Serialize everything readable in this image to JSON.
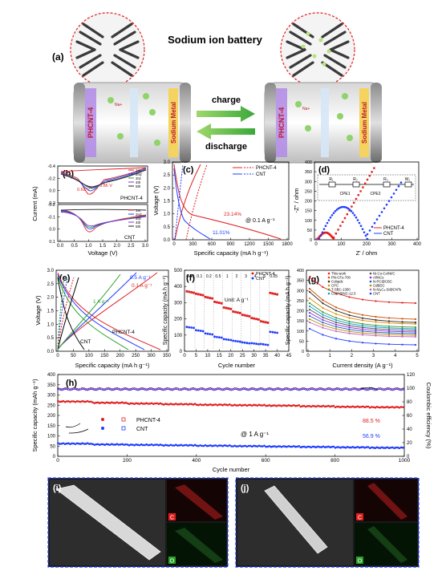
{
  "panels": {
    "a": {
      "label": "(a)",
      "title": "Sodium ion battery",
      "charge_label": "charge",
      "discharge_label": "discharge",
      "left_cell": "PHCNT-4",
      "metal_label": "Sodium Metal",
      "ion_label": "Na+"
    },
    "b": {
      "label": "(b)",
      "ylabel": "Current (mA)",
      "xlabel": "Voltage (V)",
      "top_name": "PHCNT-4",
      "bottom_name": "CNT",
      "peak1": "0.62 V",
      "peak2": "0.86 V",
      "legend": [
        "1st",
        "2nd",
        "3rd",
        "4th",
        "5th"
      ]
    },
    "c": {
      "label": "(c)",
      "ylabel": "Voltage (V)",
      "xlabel": "Specific capacity (mA h g⁻¹)",
      "legend": [
        "PHCNT-4",
        "CNT"
      ],
      "annot_rate": "@ 0.1 A g⁻¹",
      "pct1": "23.14%",
      "pct2": "11.01%"
    },
    "d": {
      "label": "(d)",
      "ylabel": "-Z'' / ohm",
      "xlabel": "Z' / ohm",
      "legend": [
        "PHCNT-4",
        "CNT"
      ],
      "circuit": [
        "R₁",
        "R₂",
        "R₃",
        "CPE1",
        "CPE2",
        "W₁"
      ]
    },
    "e": {
      "label": "(e)",
      "ylabel": "Voltage (V)",
      "xlabel": "Specific capacity (mA h g⁻¹)",
      "rates": [
        "0.5 A g⁻¹",
        "0.1 A g⁻¹",
        "1 A g⁻¹"
      ],
      "name1": "PHCNT-4",
      "name2": "CNT"
    },
    "f": {
      "label": "(f)",
      "ylabel": "Specific capacity (mA h g⁻¹)",
      "xlabel": "Cycle number",
      "legend": [
        "PHCNT-4",
        "CNT"
      ],
      "unit": "Unit: A g⁻¹",
      "rates": [
        "0.05",
        "0.1",
        "0.2",
        "0.5",
        "1",
        "2",
        "3",
        "4",
        "5",
        "0.05"
      ]
    },
    "g": {
      "label": "(g)",
      "ylabel": "Specific capacity (mA h g⁻¹)",
      "xlabel": "Current density (A g⁻¹)",
      "legend": [
        "This work",
        "PN-CFs-700",
        "Cobpdc",
        "CPC",
        "T-SBC-1300",
        "Co₃P@NC-12.5",
        "Ni-Co-Co/Ni/C",
        "Al/NCs",
        "N-PC@CBC",
        "CdBDC",
        "N-Ni₃C₄-Si@CNTs",
        "CNT"
      ],
      "colors": [
        "#e02020",
        "#d24f00",
        "#2e2e2e",
        "#e08a00",
        "#3c8f3c",
        "#00a0c8",
        "#555555",
        "#8a2be2",
        "#1b5fb5",
        "#b8860b",
        "#c060c0",
        "#1e3cff"
      ]
    },
    "h": {
      "label": "(h)",
      "ylabel_left": "Specific capacity (mAh g⁻¹)",
      "ylabel_right": "Coulombic efficiency (%)",
      "xlabel": "Cycle number",
      "legend": [
        "PHCNT-4",
        "CNT"
      ],
      "rate": "@ 1 A g⁻¹",
      "ret1": "88.5 %",
      "ret2": "56.9 %"
    },
    "i": {
      "label": "(i)",
      "map1": "C",
      "map2": "O"
    },
    "j": {
      "label": "(j)",
      "map1": "C",
      "map2": "O"
    }
  },
  "chart_data": [
    {
      "type": "line",
      "panel": "b",
      "xlim": [
        0,
        3
      ],
      "ylim_top": [
        -0.4,
        0.2
      ],
      "ylim_bottom": [
        -0.2,
        0.1
      ],
      "xticks": [
        "0.0",
        "0.5",
        "1.0",
        "1.5",
        "2.0",
        "2.5",
        "3.0"
      ],
      "yticks_top": [
        "0.2",
        "0.0",
        "-0.2",
        "-0.4"
      ],
      "yticks_bottom": [
        "0.1",
        "0.0",
        "-0.1",
        "-0.2"
      ]
    },
    {
      "type": "line",
      "panel": "c",
      "xlim": [
        0,
        1800
      ],
      "ylim": [
        0,
        3.0
      ],
      "xticks": [
        "0",
        "300",
        "600",
        "900",
        "1200",
        "1500",
        "1800"
      ],
      "yticks": [
        "0.0",
        "0.5",
        "1.0",
        "1.5",
        "2.0",
        "2.5",
        "3.0"
      ]
    },
    {
      "type": "scatter",
      "panel": "d",
      "xlim": [
        0,
        400
      ],
      "ylim": [
        0,
        400
      ],
      "xticks": [
        "0",
        "100",
        "200",
        "300",
        "400"
      ],
      "yticks": [
        "0",
        "50",
        "100",
        "150",
        "200",
        "250",
        "300",
        "350",
        "400"
      ]
    },
    {
      "type": "line",
      "panel": "e",
      "xlim": [
        0,
        350
      ],
      "ylim": [
        0,
        3.0
      ],
      "xticks": [
        "0",
        "50",
        "100",
        "150",
        "200",
        "250",
        "300",
        "350"
      ],
      "yticks": [
        "0.0",
        "0.5",
        "1.0",
        "1.5",
        "2.0",
        "2.5",
        "3.0"
      ]
    },
    {
      "type": "scatter",
      "panel": "f",
      "xlim": [
        0,
        45
      ],
      "ylim": [
        0,
        500
      ],
      "xticks": [
        "0",
        "5",
        "10",
        "15",
        "20",
        "25",
        "30",
        "35",
        "40",
        "45"
      ],
      "yticks": [
        "0",
        "100",
        "200",
        "300",
        "400",
        "500"
      ],
      "series": [
        {
          "name": "PHCNT-4",
          "color": "#e02020",
          "values": [
            370,
            355,
            335,
            305,
            270,
            245,
            225,
            205,
            185,
            360
          ]
        },
        {
          "name": "CNT",
          "color": "#1e3cff",
          "values": [
            150,
            130,
            110,
            90,
            75,
            65,
            55,
            50,
            45,
            120
          ]
        }
      ]
    },
    {
      "type": "line",
      "panel": "g",
      "xlim": [
        0,
        5
      ],
      "ylim": [
        0,
        400
      ],
      "xticks": [
        "0",
        "1",
        "2",
        "3",
        "4",
        "5"
      ],
      "yticks": [
        "0",
        "50",
        "100",
        "150",
        "200",
        "250",
        "300",
        "350",
        "400"
      ]
    },
    {
      "type": "scatter",
      "panel": "h",
      "xlim": [
        0,
        1000
      ],
      "ylim": [
        0,
        400
      ],
      "ylim_right": [
        0,
        120
      ],
      "xticks": [
        "0",
        "200",
        "400",
        "600",
        "800",
        "1000"
      ],
      "yticks": [
        "0",
        "50",
        "100",
        "150",
        "200",
        "250",
        "300",
        "350",
        "400"
      ],
      "yticks_right": [
        "0",
        "20",
        "40",
        "60",
        "80",
        "100",
        "120"
      ],
      "series": [
        {
          "name": "PHCNT-4",
          "color": "#e02020",
          "capacity": [
            268,
            262,
            258,
            255,
            252,
            250,
            248,
            245,
            242,
            240,
            238
          ]
        },
        {
          "name": "CNT",
          "color": "#1e3cff",
          "capacity": [
            62,
            58,
            56,
            54,
            52,
            50,
            48,
            46,
            44,
            42,
            40
          ]
        }
      ]
    }
  ]
}
